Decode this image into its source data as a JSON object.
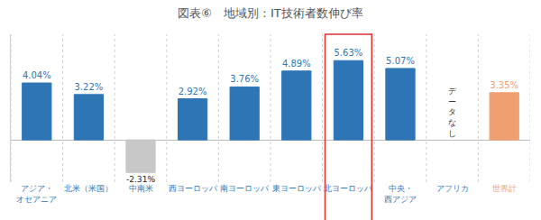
{
  "chart_data": {
    "type": "bar",
    "title": "図表⑥　地域別：IT技術者数伸び率",
    "categories": [
      "アジア・オセアニア",
      "北米（米国）",
      "中南米",
      "西ヨーロッパ",
      "南ヨーロッパ",
      "東ヨーロッパ",
      "北ヨーロッパ",
      "中央・西アジア",
      "アフリカ",
      "世界計"
    ],
    "values": [
      4.04,
      3.22,
      -2.31,
      2.92,
      3.76,
      4.89,
      5.63,
      5.07,
      null,
      3.35
    ],
    "value_labels": [
      "4.04%",
      "3.22%",
      "-2.31%",
      "2.92%",
      "3.76%",
      "4.89%",
      "5.63%",
      "5.07%",
      null,
      "3.35%"
    ],
    "colors": [
      "#2e75b6",
      "#2e75b6",
      "#c8c8c8",
      "#2e75b6",
      "#2e75b6",
      "#2e75b6",
      "#2e75b6",
      "#2e75b6",
      "#2e75b6",
      "#f0a070"
    ],
    "annotations": [
      {
        "text": "データなし",
        "category": "アフリカ"
      }
    ],
    "ylim": [
      -3,
      7.5
    ],
    "yticks": [
      0
    ],
    "grid": true,
    "data_labels": true,
    "tick_labels": "x"
  }
}
